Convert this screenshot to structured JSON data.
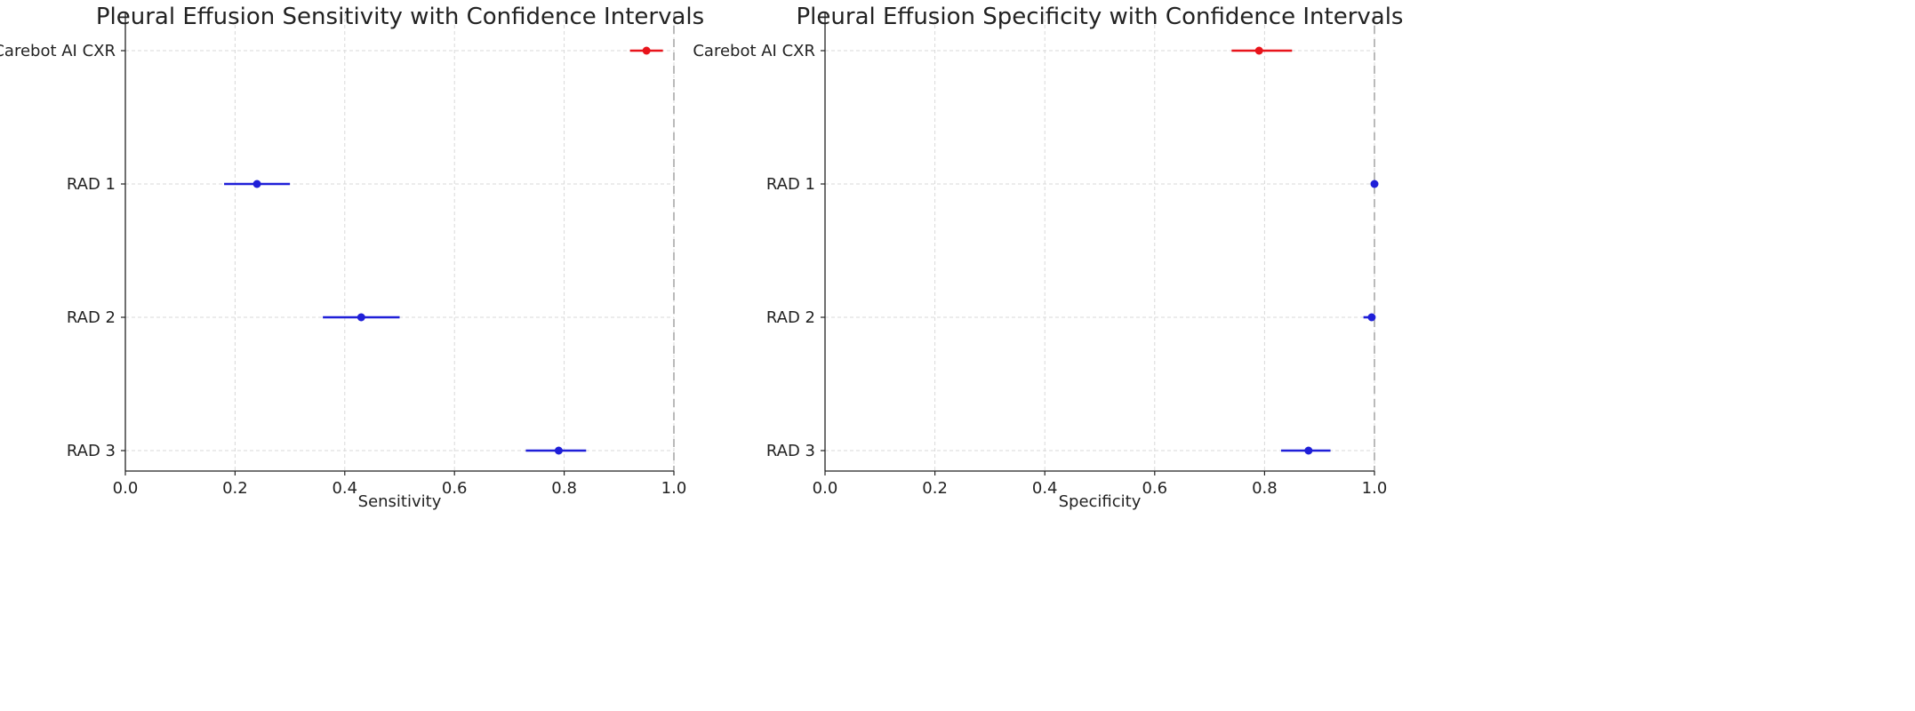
{
  "chart_data": [
    {
      "type": "forest",
      "title": "Pleural Effusion Sensitivity with Confidence Intervals",
      "xlabel": "Sensitivity",
      "xlim": [
        0.0,
        1.0
      ],
      "xticks": [
        0.0,
        0.2,
        0.4,
        0.6,
        0.8,
        1.0
      ],
      "xtick_labels": [
        "0.0",
        "0.2",
        "0.4",
        "0.6",
        "0.8",
        "1.0"
      ],
      "grid": true,
      "reference_line_x": 1.0,
      "categories": [
        "Carebot AI CXR",
        "RAD 1",
        "RAD 2",
        "RAD 3"
      ],
      "estimates": [
        0.95,
        0.24,
        0.43,
        0.79
      ],
      "ci_lower": [
        0.92,
        0.18,
        0.36,
        0.73
      ],
      "ci_upper": [
        0.98,
        0.3,
        0.5,
        0.84
      ],
      "colors": [
        "#e8141b",
        "#1f1fd8",
        "#1f1fd8",
        "#1f1fd8"
      ]
    },
    {
      "type": "forest",
      "title": "Pleural Effusion Specificity with Confidence Intervals",
      "xlabel": "Specificity",
      "xlim": [
        0.0,
        1.0
      ],
      "xticks": [
        0.0,
        0.2,
        0.4,
        0.6,
        0.8,
        1.0
      ],
      "xtick_labels": [
        "0.0",
        "0.2",
        "0.4",
        "0.6",
        "0.8",
        "1.0"
      ],
      "grid": true,
      "reference_line_x": 1.0,
      "categories": [
        "Carebot AI CXR",
        "RAD 1",
        "RAD 2",
        "RAD 3"
      ],
      "estimates": [
        0.79,
        1.0,
        0.995,
        0.88
      ],
      "ci_lower": [
        0.74,
        1.0,
        0.98,
        0.83
      ],
      "ci_upper": [
        0.85,
        1.0,
        1.0,
        0.92
      ],
      "colors": [
        "#e8141b",
        "#1f1fd8",
        "#1f1fd8",
        "#1f1fd8"
      ]
    }
  ]
}
